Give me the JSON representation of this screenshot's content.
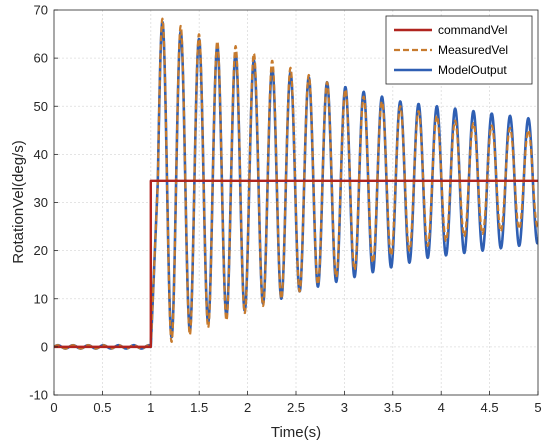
{
  "chart_data": {
    "type": "line",
    "title": "",
    "xlabel": "Time(s)",
    "ylabel": "RotationVel(deg/s)",
    "xlim": [
      0,
      5
    ],
    "ylim": [
      -10,
      70
    ],
    "xticks": [
      0,
      0.5,
      1,
      1.5,
      2,
      2.5,
      3,
      3.5,
      4,
      4.5,
      5
    ],
    "xtick_labels": [
      "0",
      "0.5",
      "1",
      "1.5",
      "2",
      "2.5",
      "3",
      "3.5",
      "4",
      "4.5",
      "5"
    ],
    "yticks": [
      -10,
      0,
      10,
      20,
      30,
      40,
      50,
      60,
      70
    ],
    "ytick_labels": [
      "-10",
      "0",
      "10",
      "20",
      "30",
      "40",
      "50",
      "60",
      "70"
    ],
    "grid": true,
    "legend_position": "top-right",
    "series": [
      {
        "name": "commandVel",
        "color": "#b0241f",
        "style": "solid",
        "x": [
          0,
          1,
          1,
          5
        ],
        "y": [
          0,
          0,
          34.5,
          34.5
        ]
      },
      {
        "name": "MeasuredVel",
        "color": "#c77b2e",
        "style": "dashed",
        "model": {
          "step_time": 1.0,
          "settle": 34.5,
          "period": 0.189,
          "first_peak_time": 1.12,
          "peaks": [
            68.2,
            66.7,
            65.0,
            63.5,
            62.5,
            61.0,
            59.5,
            58.0,
            56.5,
            55.0,
            53.5,
            52.0,
            51.0,
            50.0,
            49.0,
            48.0,
            47.0,
            46.5,
            46.0,
            45.5,
            45.0
          ],
          "troughs": [
            1.0,
            2.5,
            4.0,
            5.5,
            7.0,
            8.5,
            10.0,
            11.5,
            13.0,
            14.5,
            16.0,
            17.5,
            19.0,
            20.0,
            21.0,
            22.0,
            23.0,
            23.5,
            24.0,
            24.5,
            25.0
          ]
        }
      },
      {
        "name": "ModelOutput",
        "color": "#2f5fb3",
        "style": "solid",
        "model": {
          "step_time": 1.0,
          "settle": 34.5,
          "period": 0.189,
          "first_peak_time": 1.12,
          "peaks": [
            67.5,
            65.5,
            64.0,
            62.5,
            61.0,
            59.5,
            58.0,
            57.0,
            56.0,
            55.0,
            54.0,
            53.0,
            52.0,
            51.0,
            50.5,
            50.0,
            49.5,
            49.0,
            48.5,
            48.0,
            47.5
          ],
          "troughs": [
            2.0,
            3.5,
            5.0,
            6.5,
            7.5,
            9.0,
            10.0,
            11.5,
            12.5,
            13.5,
            14.5,
            15.5,
            16.5,
            17.5,
            18.5,
            19.0,
            19.5,
            20.0,
            20.5,
            21.0,
            21.5
          ]
        }
      }
    ]
  }
}
